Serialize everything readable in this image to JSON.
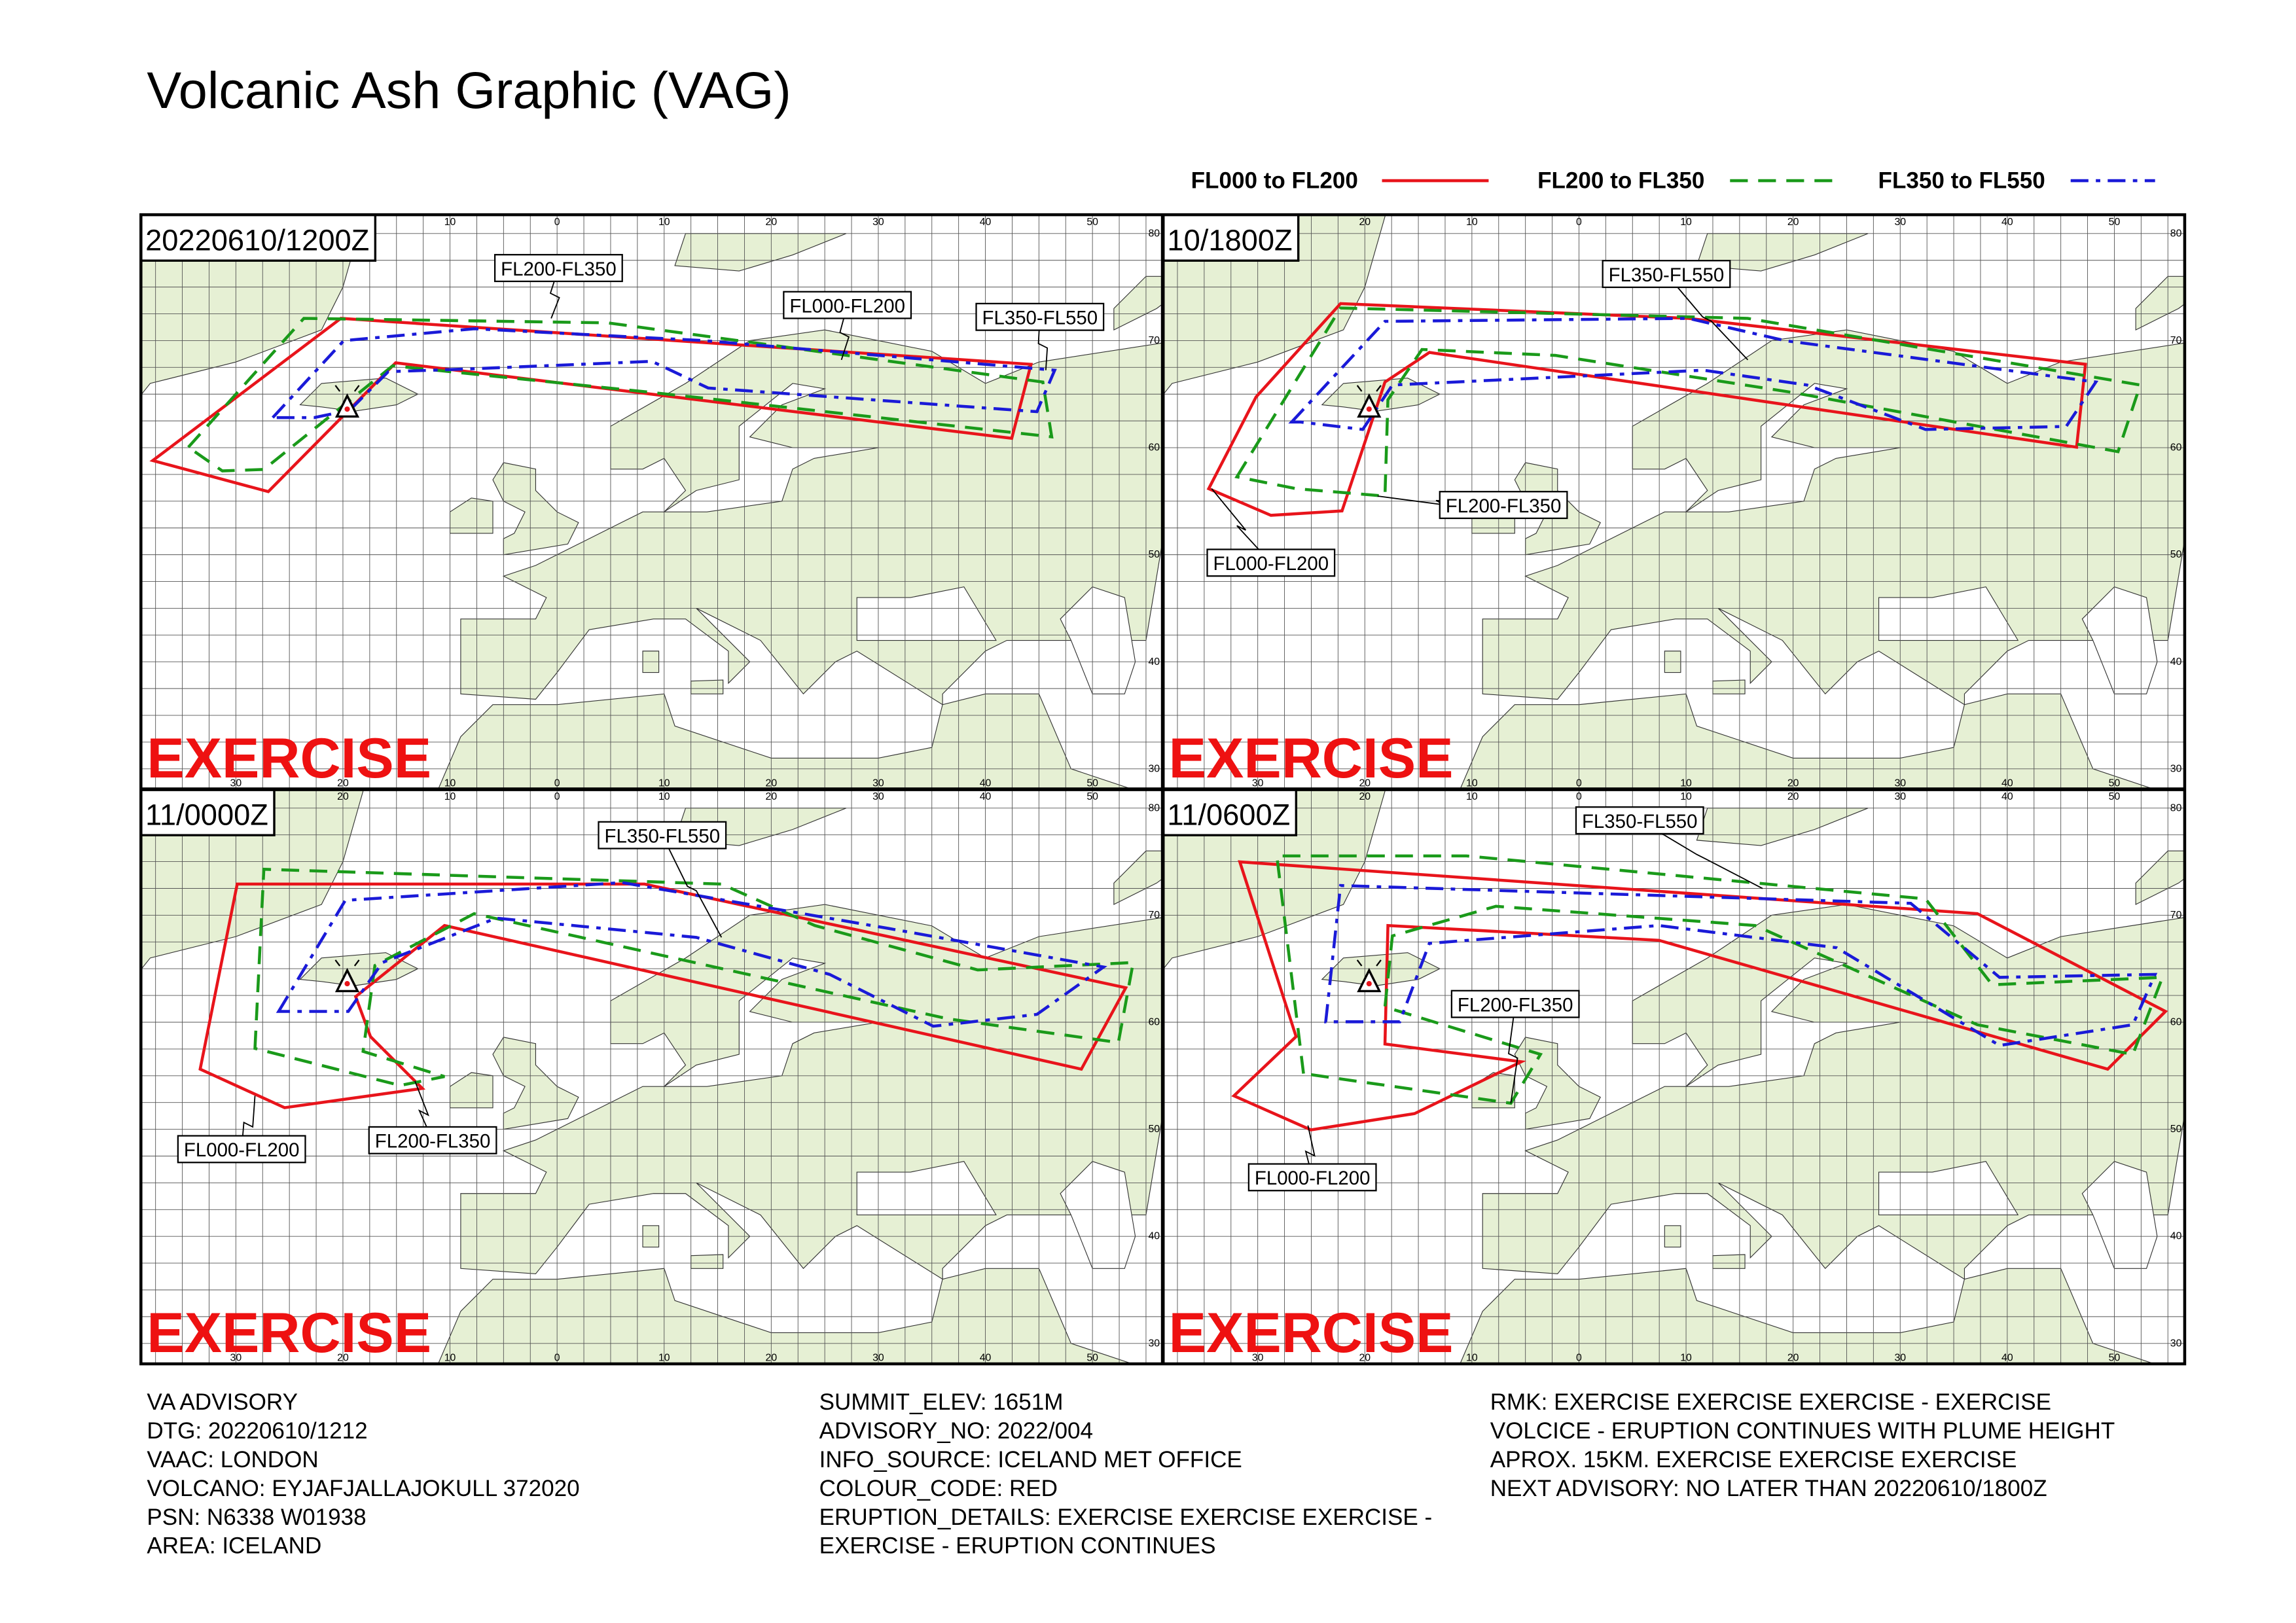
{
  "header": {
    "title": "Volcanic Ash Graphic (VAG)"
  },
  "legend": [
    {
      "label": "FL000 to FL200",
      "color": "#e8141b",
      "dash": "solid"
    },
    {
      "label": "FL200 to FL350",
      "color": "#1a9a1a",
      "dash": "dashed"
    },
    {
      "label": "FL350 to FL550",
      "color": "#1a1ad8",
      "dash": "dashdot"
    }
  ],
  "map_grid": {
    "top_labels": [
      "20",
      "10",
      "0",
      "10",
      "20",
      "30",
      "40",
      "50"
    ],
    "bottom_labels": [
      "30",
      "20",
      "10",
      "0",
      "10",
      "20",
      "30",
      "40",
      "50"
    ],
    "right_labels": [
      "80",
      "70",
      "60",
      "50",
      "40",
      "30"
    ]
  },
  "panels": [
    {
      "time": "20220610/1200Z",
      "watermark": "EXERCISE",
      "annotations": [
        "FL200-FL350",
        "FL000-FL200",
        "FL350-FL550"
      ]
    },
    {
      "time": "10/1800Z",
      "watermark": "EXERCISE",
      "annotations": [
        "FL350-FL550",
        "FL200-FL350",
        "FL000-FL200"
      ]
    },
    {
      "time": "11/0000Z",
      "watermark": "EXERCISE",
      "annotations": [
        "FL350-FL550",
        "FL000-FL200",
        "FL200-FL350"
      ]
    },
    {
      "time": "11/0600Z",
      "watermark": "EXERCISE",
      "annotations": [
        "FL350-FL550",
        "FL200-FL350",
        "FL000-FL200"
      ]
    }
  ],
  "advisory": {
    "columns": [
      [
        "VA ADVISORY",
        "DTG: 20220610/1212",
        "VAAC: LONDON",
        "VOLCANO: EYJAFJALLAJOKULL 372020",
        "PSN: N6338 W01938",
        "AREA: ICELAND"
      ],
      [
        "SUMMIT_ELEV: 1651M",
        "ADVISORY_NO: 2022/004",
        "INFO_SOURCE: ICELAND MET OFFICE",
        "COLOUR_CODE: RED",
        "ERUPTION_DETAILS: EXERCISE EXERCISE EXERCISE -",
        "EXERCISE - ERUPTION CONTINUES"
      ],
      [
        "RMK: EXERCISE EXERCISE EXERCISE - EXERCISE",
        "VOLCICE - ERUPTION CONTINUES WITH PLUME HEIGHT",
        "APROX. 15KM. EXERCISE EXERCISE EXERCISE",
        "NEXT ADVISORY: NO LATER THAN 20220610/1800Z"
      ]
    ]
  }
}
